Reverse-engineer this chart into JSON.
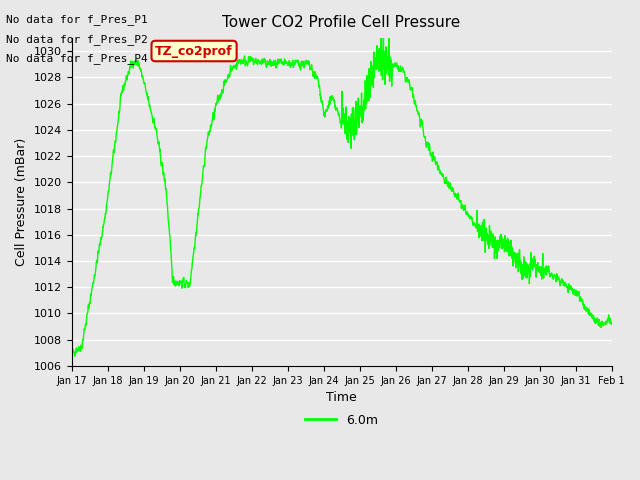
{
  "title": "Tower CO2 Profile Cell Pressure",
  "xlabel": "Time",
  "ylabel": "Cell Pressure (mBar)",
  "ylim": [
    1006,
    1031
  ],
  "yticks": [
    1006,
    1008,
    1010,
    1012,
    1014,
    1016,
    1018,
    1020,
    1022,
    1024,
    1026,
    1028,
    1030
  ],
  "xtick_labels": [
    "Jan 17",
    "Jan 18",
    "Jan 19",
    "Jan 20",
    "Jan 21",
    "Jan 22",
    "Jan 23",
    "Jan 24",
    "Jan 25",
    "Jan 26",
    "Jan 27",
    "Jan 28",
    "Jan 29",
    "Jan 30",
    "Jan 31",
    "Feb 1"
  ],
  "line_color": "#00ff00",
  "line_label": "6.0m",
  "legend_texts": [
    "No data for f_Pres_P1",
    "No data for f_Pres_P2",
    "No data for f_Pres_P4"
  ],
  "tooltip_text": "TZ_co2prof",
  "tooltip_bg": "#ffffcc",
  "tooltip_border": "#cc0000",
  "bg_color": "#e8e8e8",
  "plot_bg": "#e8e8e8",
  "grid_color": "#ffffff",
  "font_color": "#000000"
}
